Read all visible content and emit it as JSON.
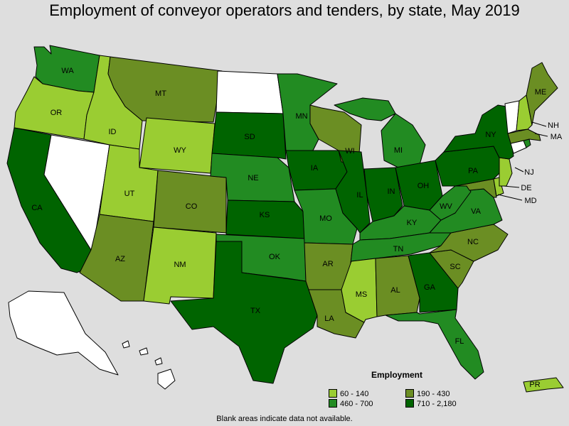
{
  "title": "Employment of conveyor operators and tenders, by state, May 2019",
  "colors": {
    "bin1": "#9acd32",
    "bin2": "#6b8e23",
    "bin3": "#228b22",
    "bin4": "#006400",
    "nodata": "#ffffff",
    "background": "#dedede"
  },
  "legend": {
    "title": "Employment",
    "items": [
      {
        "label": "60 - 140",
        "bin": "bin1"
      },
      {
        "label": "190 - 430",
        "bin": "bin2"
      },
      {
        "label": "460 - 700",
        "bin": "bin3"
      },
      {
        "label": "710 - 2,180",
        "bin": "bin4"
      }
    ]
  },
  "note": "Blank areas indicate data not available.",
  "states": [
    {
      "id": "WA",
      "label": "WA",
      "bin": "bin3"
    },
    {
      "id": "OR",
      "label": "OR",
      "bin": "bin1"
    },
    {
      "id": "CA",
      "label": "CA",
      "bin": "bin4"
    },
    {
      "id": "NV",
      "label": "",
      "bin": "nodata"
    },
    {
      "id": "ID",
      "label": "ID",
      "bin": "bin1"
    },
    {
      "id": "MT",
      "label": "MT",
      "bin": "bin2"
    },
    {
      "id": "WY",
      "label": "WY",
      "bin": "bin1"
    },
    {
      "id": "UT",
      "label": "UT",
      "bin": "bin1"
    },
    {
      "id": "AZ",
      "label": "AZ",
      "bin": "bin2"
    },
    {
      "id": "CO",
      "label": "CO",
      "bin": "bin2"
    },
    {
      "id": "NM",
      "label": "NM",
      "bin": "bin1"
    },
    {
      "id": "ND",
      "label": "",
      "bin": "nodata"
    },
    {
      "id": "SD",
      "label": "SD",
      "bin": "bin4"
    },
    {
      "id": "NE",
      "label": "NE",
      "bin": "bin3"
    },
    {
      "id": "KS",
      "label": "KS",
      "bin": "bin4"
    },
    {
      "id": "OK",
      "label": "OK",
      "bin": "bin3"
    },
    {
      "id": "TX",
      "label": "TX",
      "bin": "bin4"
    },
    {
      "id": "MN",
      "label": "MN",
      "bin": "bin3"
    },
    {
      "id": "IA",
      "label": "IA",
      "bin": "bin4"
    },
    {
      "id": "MO",
      "label": "MO",
      "bin": "bin3"
    },
    {
      "id": "AR",
      "label": "AR",
      "bin": "bin2"
    },
    {
      "id": "LA",
      "label": "LA",
      "bin": "bin2"
    },
    {
      "id": "WI",
      "label": "WI",
      "bin": "bin2"
    },
    {
      "id": "IL",
      "label": "IL",
      "bin": "bin4"
    },
    {
      "id": "MI",
      "label": "MI",
      "bin": "bin3"
    },
    {
      "id": "IN",
      "label": "IN",
      "bin": "bin4"
    },
    {
      "id": "OH",
      "label": "OH",
      "bin": "bin4"
    },
    {
      "id": "KY",
      "label": "KY",
      "bin": "bin3"
    },
    {
      "id": "TN",
      "label": "TN",
      "bin": "bin3"
    },
    {
      "id": "MS",
      "label": "MS",
      "bin": "bin1"
    },
    {
      "id": "AL",
      "label": "AL",
      "bin": "bin2"
    },
    {
      "id": "GA",
      "label": "GA",
      "bin": "bin4"
    },
    {
      "id": "FL",
      "label": "FL",
      "bin": "bin3"
    },
    {
      "id": "SC",
      "label": "SC",
      "bin": "bin2"
    },
    {
      "id": "NC",
      "label": "NC",
      "bin": "bin2"
    },
    {
      "id": "VA",
      "label": "VA",
      "bin": "bin3"
    },
    {
      "id": "WV",
      "label": "WV",
      "bin": "bin3"
    },
    {
      "id": "MD",
      "label": "MD",
      "bin": "bin2"
    },
    {
      "id": "DE",
      "label": "DE",
      "bin": "bin1"
    },
    {
      "id": "PA",
      "label": "PA",
      "bin": "bin4"
    },
    {
      "id": "NJ",
      "label": "NJ",
      "bin": "bin1"
    },
    {
      "id": "NY",
      "label": "NY",
      "bin": "bin4"
    },
    {
      "id": "CT",
      "label": "",
      "bin": "nodata"
    },
    {
      "id": "RI",
      "label": "",
      "bin": "bin3"
    },
    {
      "id": "MA",
      "label": "MA",
      "bin": "bin2"
    },
    {
      "id": "VT",
      "label": "",
      "bin": "nodata"
    },
    {
      "id": "NH",
      "label": "NH",
      "bin": "bin1"
    },
    {
      "id": "ME",
      "label": "ME",
      "bin": "bin2"
    },
    {
      "id": "AK",
      "label": "",
      "bin": "nodata"
    },
    {
      "id": "HI",
      "label": "",
      "bin": "nodata"
    },
    {
      "id": "PR",
      "label": "PR",
      "bin": "bin1"
    }
  ]
}
